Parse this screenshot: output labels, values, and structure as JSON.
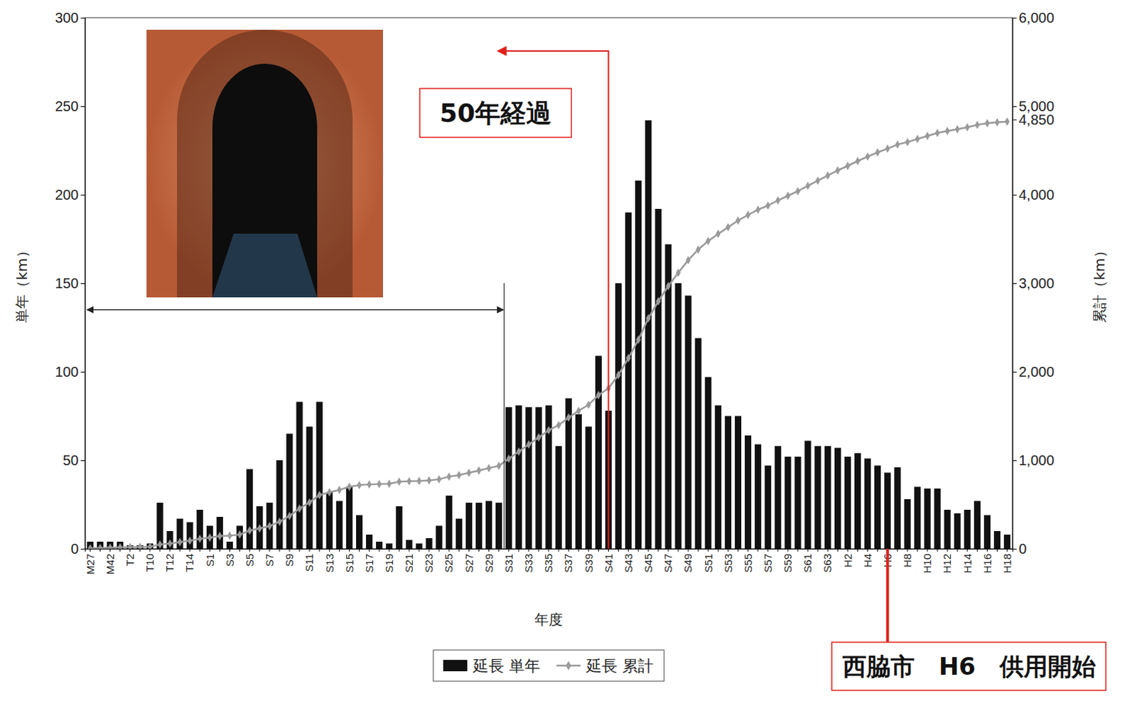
{
  "chart_data": {
    "type": "bar",
    "xlabel": "年度",
    "ylabel": "単年（km）",
    "y2label": "累計（km）",
    "categories": [
      "M27",
      null,
      "M42",
      null,
      "T2",
      null,
      "T10",
      null,
      "T12",
      null,
      "T14",
      null,
      "S1",
      null,
      "S3",
      null,
      "S5",
      null,
      "S7",
      null,
      "S9",
      null,
      "S11",
      null,
      "S13",
      null,
      "S15",
      null,
      "S17",
      null,
      "S19",
      null,
      "S21",
      null,
      "S23",
      null,
      "S25",
      null,
      "S27",
      null,
      "S29",
      null,
      "S31",
      null,
      "S33",
      null,
      "S35",
      null,
      "S37",
      null,
      "S39",
      null,
      "S41",
      null,
      "S43",
      null,
      "S45",
      null,
      "S47",
      null,
      "S49",
      null,
      "S51",
      null,
      "S53",
      null,
      "S55",
      null,
      "S57",
      null,
      "S59",
      null,
      "S61",
      null,
      "S63",
      null,
      "H2",
      null,
      "H4",
      null,
      "H6",
      null,
      "H8",
      null,
      "H10",
      null,
      "H12",
      null,
      "H14",
      null,
      "H16",
      null,
      "H18"
    ],
    "series": [
      {
        "name": "延長 単年",
        "type": "bar",
        "color": "#111111",
        "values": [
          4,
          4,
          4,
          4,
          2,
          2,
          3,
          26,
          10,
          17,
          15,
          22,
          13,
          18,
          4,
          13,
          45,
          24,
          26,
          50,
          65,
          83,
          69,
          83,
          32,
          27,
          35,
          19,
          8,
          4,
          3,
          24,
          5,
          3,
          6,
          13,
          30,
          17,
          26,
          26,
          27,
          26,
          80,
          81,
          80,
          80,
          81,
          58,
          85,
          76,
          69,
          109,
          78,
          150,
          190,
          208,
          242,
          192,
          172,
          150,
          143,
          119,
          97,
          81,
          75,
          75,
          64,
          59,
          47,
          58,
          52,
          52,
          61,
          58,
          58,
          57,
          52,
          54,
          51,
          47,
          43,
          46,
          28,
          35,
          34,
          34,
          22,
          20,
          22,
          27,
          19,
          10,
          8
        ]
      },
      {
        "name": "延長 累計",
        "type": "line",
        "axis": "y2",
        "color": "#9a9a9a",
        "marker": "diamond",
        "values": [
          4,
          8,
          12,
          16,
          18,
          20,
          23,
          49,
          59,
          76,
          91,
          113,
          126,
          144,
          148,
          161,
          206,
          230,
          256,
          306,
          371,
          454,
          523,
          606,
          638,
          665,
          700,
          719,
          727,
          731,
          734,
          758,
          763,
          766,
          772,
          785,
          815,
          832,
          858,
          884,
          911,
          937,
          1017,
          1098,
          1178,
          1258,
          1339,
          1397,
          1482,
          1558,
          1627,
          1736,
          1814,
          1964,
          2154,
          2362,
          2604,
          2796,
          2968,
          3118,
          3261,
          3380,
          3477,
          3558,
          3633,
          3708,
          3772,
          3831,
          3878,
          3936,
          3988,
          4040,
          4101,
          4159,
          4217,
          4274,
          4326,
          4380,
          4431,
          4478,
          4521,
          4567,
          4595,
          4630,
          4664,
          4698,
          4720,
          4740,
          4762,
          4789,
          4808,
          4818,
          4826
        ]
      }
    ],
    "ylim": [
      0,
      300
    ],
    "yticks": [
      0,
      50,
      100,
      150,
      200,
      250,
      300
    ],
    "y2lim": [
      0,
      6000
    ],
    "y2ticks": [
      0,
      {
        "value": 1000,
        "label": "1,000"
      },
      {
        "value": 2000,
        "label": "2,000"
      },
      {
        "value": 3000,
        "label": "3,000"
      },
      {
        "value": 4000,
        "label": "4,000"
      },
      {
        "value": 4850,
        "label": "4,850"
      },
      {
        "value": 5000,
        "label": "5,000"
      },
      {
        "value": 6000,
        "label": "6,000"
      }
    ],
    "legend": "bottom",
    "grid": false,
    "annotations": [
      {
        "text": "50年経過",
        "category": "S41",
        "span": [
          "M27",
          "S31"
        ]
      },
      {
        "text": "西脇市　H6　供用開始",
        "category": "H6"
      }
    ]
  }
}
